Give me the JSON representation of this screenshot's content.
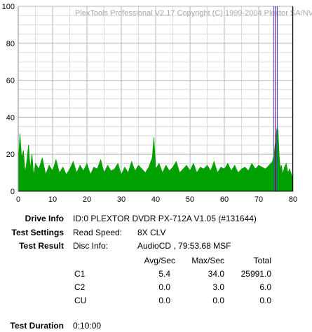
{
  "chart_data": {
    "type": "area",
    "title": "PlexTools Professional V2.17 Copyright (C) 1999-2004 Plextor SA/NV",
    "xlim": [
      0,
      80
    ],
    "ylim": [
      0,
      100
    ],
    "x_ticks": [
      0,
      10,
      20,
      30,
      40,
      50,
      60,
      70,
      80
    ],
    "y_ticks": [
      0,
      20,
      40,
      60,
      80,
      100
    ],
    "grid": true,
    "series": [
      {
        "name": "C1",
        "color": "#00a000",
        "x": [
          0,
          0.5,
          1,
          1.5,
          2,
          2.5,
          3,
          3.5,
          4,
          4.5,
          5,
          6,
          7,
          8,
          9,
          10,
          11,
          12,
          13,
          14,
          15,
          16,
          17,
          18,
          19,
          20,
          21,
          22,
          23,
          24,
          25,
          26,
          27,
          28,
          29,
          30,
          31,
          32,
          33,
          34,
          35,
          36,
          37,
          38,
          39,
          39.5,
          40,
          41,
          42,
          43,
          44,
          45,
          46,
          47,
          48,
          49,
          50,
          51,
          52,
          53,
          54,
          55,
          56,
          57,
          58,
          59,
          60,
          61,
          62,
          63,
          64,
          65,
          66,
          67,
          68,
          69,
          70,
          71,
          72,
          73,
          74,
          74.5,
          75,
          75.3,
          75.6,
          76,
          76.3,
          76.6,
          77,
          77.5,
          78,
          78.5,
          79,
          79.7
        ],
        "values": [
          14,
          31,
          18,
          22,
          10,
          16,
          25,
          12,
          20,
          8,
          15,
          12,
          18,
          9,
          14,
          11,
          17,
          10,
          13,
          9,
          12,
          16,
          10,
          14,
          11,
          15,
          9,
          13,
          12,
          17,
          10,
          14,
          11,
          12,
          15,
          9,
          13,
          10,
          16,
          11,
          14,
          12,
          10,
          13,
          18,
          29,
          12,
          15,
          10,
          14,
          11,
          13,
          16,
          10,
          12,
          14,
          11,
          15,
          10,
          13,
          12,
          14,
          11,
          16,
          10,
          13,
          12,
          15,
          11,
          14,
          10,
          12,
          13,
          11,
          15,
          12,
          14,
          13,
          12,
          14,
          16,
          20,
          29,
          34,
          33,
          18,
          12,
          14,
          9,
          13,
          15,
          10,
          12,
          8
        ]
      }
    ],
    "markers": [
      {
        "x": 79.9,
        "color": "#000000"
      },
      {
        "x": 74.9,
        "color": "#8b0000"
      },
      {
        "x": 74.4,
        "color": "#4040ff"
      },
      {
        "x": 75.4,
        "color": "#4040ff"
      }
    ]
  },
  "report": {
    "drive_info_label": "Drive Info",
    "drive_info_value": "ID:0 PLEXTOR DVDR PX-712A V1.05 (#131644)",
    "test_settings_label": "Test Settings",
    "read_speed_label": "Read Speed:",
    "read_speed_value": "8X CLV",
    "test_result_label": "Test Result",
    "disc_info_label": "Disc Info:",
    "disc_info_value": "AudioCD , 79:53.68 MSF",
    "columns": [
      "Avg/Sec",
      "Max/Sec",
      "Total"
    ],
    "rows": [
      {
        "name": "C1",
        "avg": "5.4",
        "max": "34.0",
        "total": "25991.0"
      },
      {
        "name": "C2",
        "avg": "0.0",
        "max": "3.0",
        "total": "6.0"
      },
      {
        "name": "CU",
        "avg": "0.0",
        "max": "0.0",
        "total": "0.0"
      }
    ],
    "duration_label": "Test Duration",
    "duration_value": "0:10:00"
  }
}
